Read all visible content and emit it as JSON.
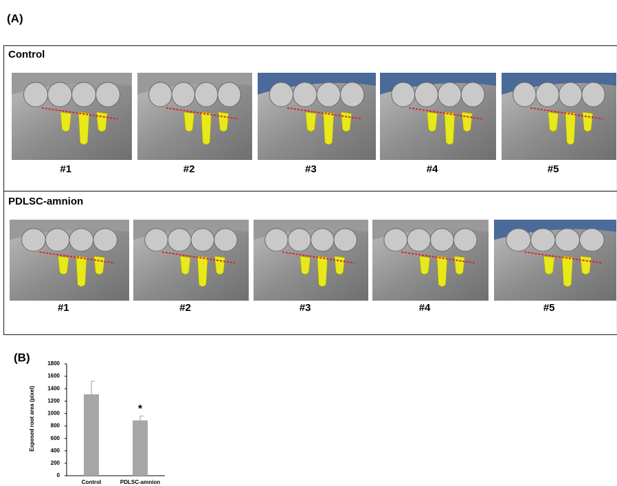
{
  "panel_a": {
    "label": "(A)",
    "groups": [
      {
        "title": "Control",
        "samples": [
          "#1",
          "#2",
          "#3",
          "#4",
          "#5"
        ]
      },
      {
        "title": "PDLSC-amnion",
        "samples": [
          "#1",
          "#2",
          "#3",
          "#4",
          "#5"
        ]
      }
    ]
  },
  "panel_b": {
    "label": "(B)"
  },
  "chart_data": {
    "type": "bar",
    "y_label": "Exposed root area (pixel)",
    "categories": [
      "Control",
      "PDLSC-amnion"
    ],
    "values": [
      1310,
      890
    ],
    "errors": [
      210,
      70
    ],
    "annotation": "*",
    "color": "#a6a6a6",
    "ylim": [
      0,
      1800
    ],
    "yticks": [
      0,
      200,
      400,
      600,
      800,
      1000,
      1200,
      1400,
      1600,
      1800
    ]
  }
}
